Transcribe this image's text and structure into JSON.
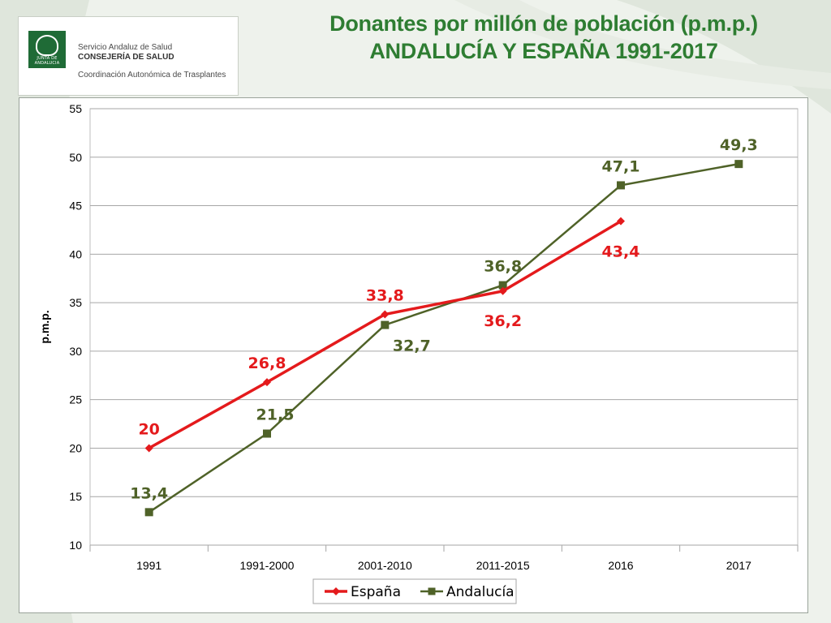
{
  "header": {
    "title_line1": "Donantes por millón de población (p.m.p.)",
    "title_line2": "ANDALUCÍA Y ESPAÑA 1991-2017"
  },
  "logo": {
    "emblem_text": "JUNTA DE ANDALUCIA",
    "line1": "Servicio Andaluz de Salud",
    "line2": "CONSEJERÍA DE SALUD",
    "line3": "Coordinación Autonómica de Trasplantes"
  },
  "chart_data": {
    "type": "line",
    "categories": [
      "1991",
      "1991-2000",
      "2001-2010",
      "2011-2015",
      "2016",
      "2017"
    ],
    "series": [
      {
        "name": "España",
        "color": "#e41a1c",
        "marker": "diamond",
        "values": [
          20,
          26.8,
          33.8,
          36.2,
          43.4,
          null
        ],
        "labels": [
          "20",
          "26,8",
          "33,8",
          "36,2",
          "43,4",
          null
        ]
      },
      {
        "name": "Andalucía",
        "color": "#4f6228",
        "marker": "square",
        "values": [
          13.4,
          21.5,
          32.7,
          36.8,
          47.1,
          49.3
        ],
        "labels": [
          "13,4",
          "21,5",
          "32,7",
          "36,8",
          "47,1",
          "49,3"
        ]
      }
    ],
    "title": "",
    "xlabel": "",
    "ylabel": "p.m.p.",
    "ylim": [
      10,
      55
    ],
    "yticks": [
      "10",
      "15",
      "20",
      "25",
      "30",
      "35",
      "40",
      "45",
      "50",
      "55"
    ],
    "grid": true,
    "legend_position": "bottom"
  }
}
